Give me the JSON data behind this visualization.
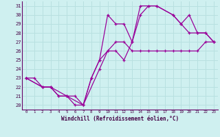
{
  "xlabel": "Windchill (Refroidissement éolien,°C)",
  "xlim": [
    -0.5,
    23.5
  ],
  "ylim": [
    19.5,
    31.5
  ],
  "yticks": [
    20,
    21,
    22,
    23,
    24,
    25,
    26,
    27,
    28,
    29,
    30,
    31
  ],
  "xticks": [
    0,
    1,
    2,
    3,
    4,
    5,
    6,
    7,
    8,
    9,
    10,
    11,
    12,
    13,
    14,
    15,
    16,
    17,
    18,
    19,
    20,
    21,
    22,
    23
  ],
  "bg_color": "#cff0f0",
  "grid_color": "#b8e0e0",
  "line_color": "#990099",
  "line1_x": [
    0,
    1,
    2,
    3,
    4,
    5,
    6,
    7,
    8,
    9,
    10,
    11,
    12,
    13,
    14,
    15,
    16,
    17,
    18,
    19,
    20,
    21,
    22,
    23
  ],
  "line1_y": [
    23,
    23,
    22,
    22,
    21,
    21,
    20,
    20,
    23,
    25,
    26,
    27,
    27,
    26,
    26,
    26,
    26,
    26,
    26,
    26,
    26,
    26,
    27,
    27
  ],
  "line2_x": [
    0,
    2,
    3,
    4,
    5,
    6,
    7,
    8,
    9,
    10,
    11,
    12,
    13,
    14,
    15,
    16,
    18,
    19,
    20,
    21,
    22,
    23
  ],
  "line2_y": [
    23,
    22,
    22,
    21,
    21,
    21,
    20,
    23,
    25,
    30,
    29,
    29,
    27,
    31,
    31,
    31,
    30,
    29,
    28,
    28,
    28,
    27
  ],
  "line3_x": [
    0,
    2,
    3,
    5,
    7,
    9,
    10,
    11,
    12,
    13,
    14,
    15,
    16,
    18,
    19,
    20,
    21,
    22,
    23
  ],
  "line3_y": [
    23,
    22,
    22,
    21,
    20,
    24,
    26,
    26,
    25,
    27,
    30,
    31,
    31,
    30,
    29,
    30,
    28,
    28,
    27
  ]
}
